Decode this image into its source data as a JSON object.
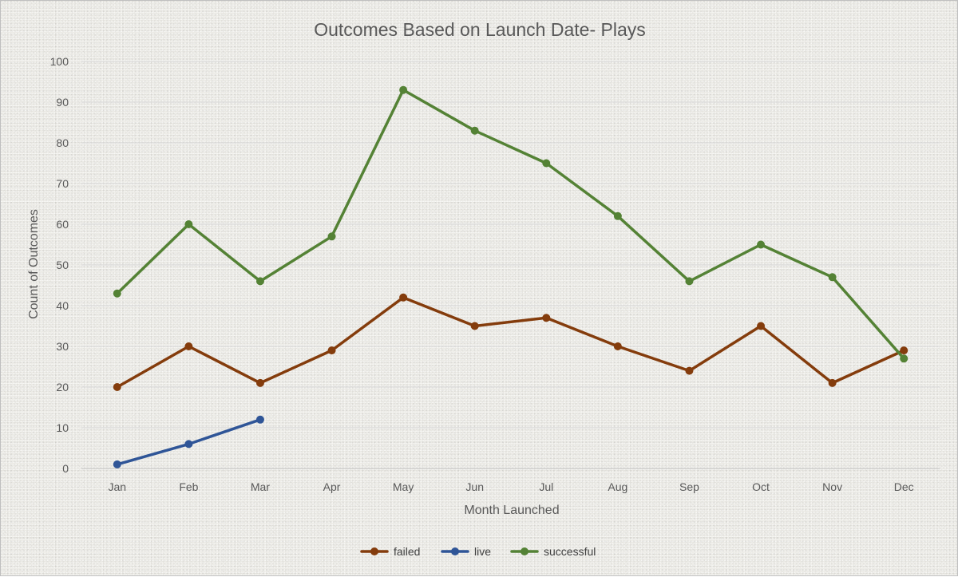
{
  "chart_data": {
    "type": "line",
    "title": "Outcomes Based on Launch Date- Plays",
    "xlabel": "Month Launched",
    "ylabel": "Count of Outcomes",
    "categories": [
      "Jan",
      "Feb",
      "Mar",
      "Apr",
      "May",
      "Jun",
      "Jul",
      "Aug",
      "Sep",
      "Oct",
      "Nov",
      "Dec"
    ],
    "ylim": [
      0,
      100
    ],
    "yticks": [
      0,
      10,
      20,
      30,
      40,
      50,
      60,
      70,
      80,
      90,
      100
    ],
    "grid": true,
    "legend": "bottom",
    "series": [
      {
        "name": "failed",
        "color": "#843c0c",
        "values": [
          20,
          30,
          21,
          29,
          42,
          35,
          37,
          30,
          24,
          35,
          21,
          29
        ]
      },
      {
        "name": "live",
        "color": "#2f5597",
        "values": [
          1,
          6,
          12,
          null,
          null,
          null,
          null,
          null,
          null,
          null,
          null,
          null
        ]
      },
      {
        "name": "successful",
        "color": "#548235",
        "values": [
          43,
          60,
          46,
          57,
          93,
          83,
          75,
          62,
          46,
          55,
          47,
          27
        ]
      }
    ]
  }
}
